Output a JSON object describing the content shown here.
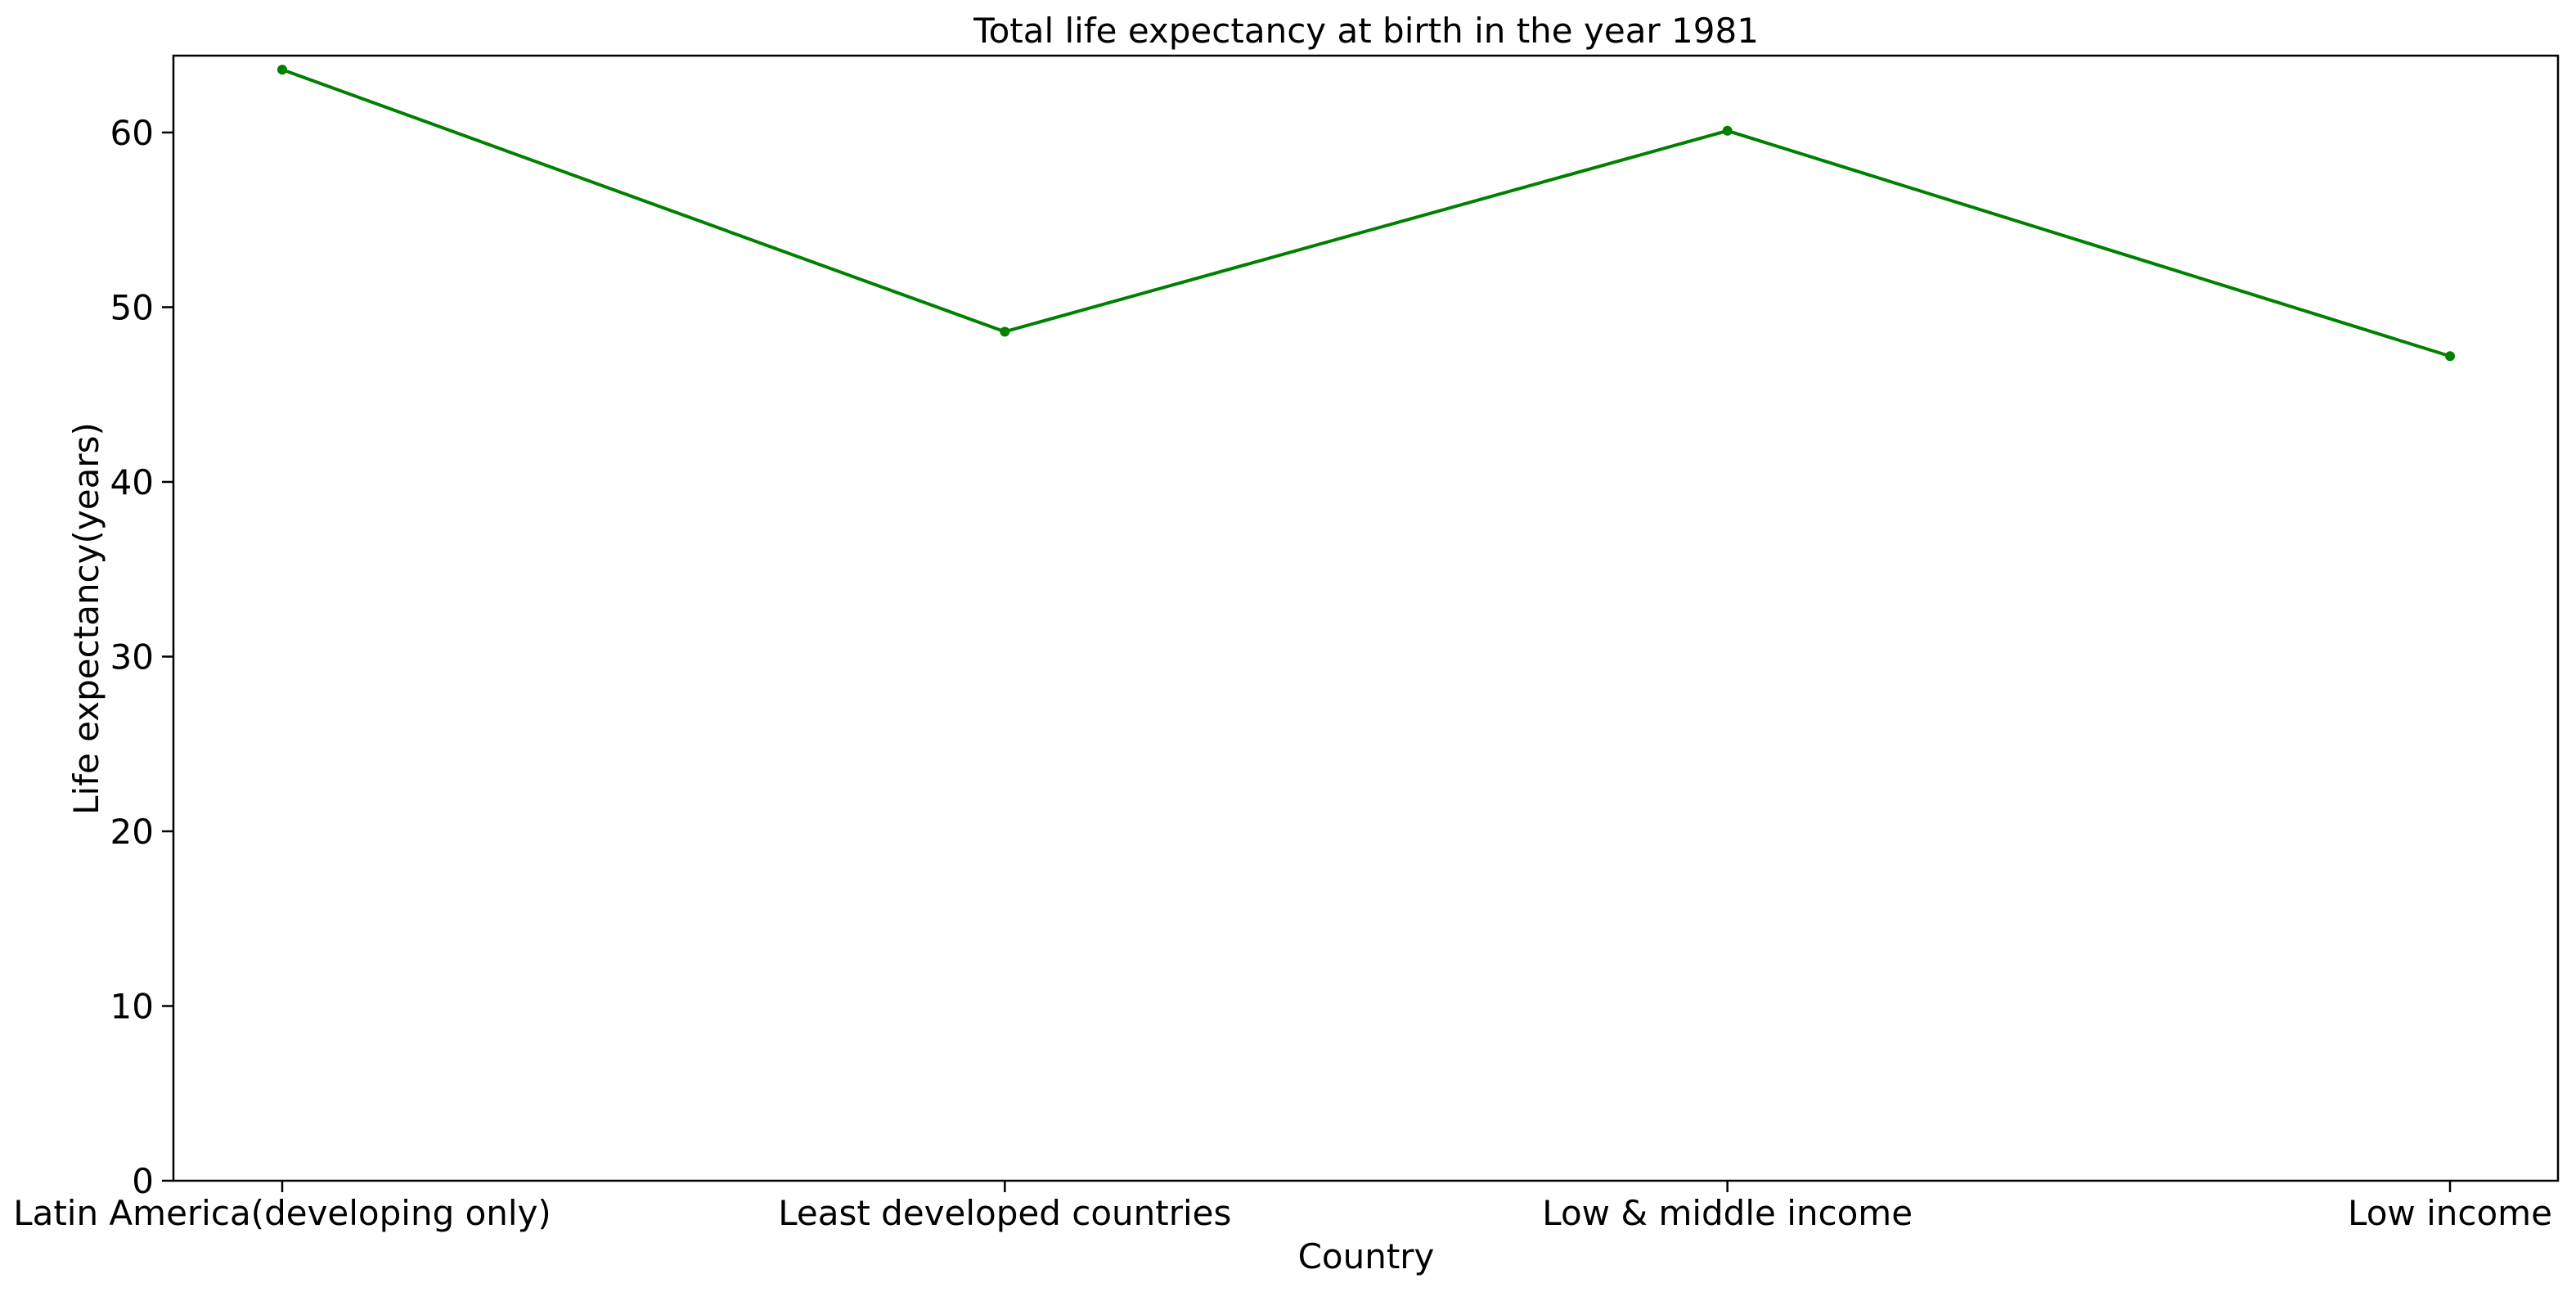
{
  "chart_data": {
    "type": "line",
    "title": "Total life expectancy at birth in the year 1981",
    "xlabel": "Country",
    "ylabel": "Life expectancy(years)",
    "categories": [
      "Latin America(developing only)",
      "Least developed countries",
      "Low & middle income",
      "Low income"
    ],
    "series": [
      {
        "values": [
          63.6,
          48.6,
          60.1,
          47.2
        ],
        "color": "#008000"
      }
    ],
    "ylim": [
      0,
      64.4
    ],
    "yticks": [
      0,
      10,
      20,
      30,
      40,
      50,
      60
    ],
    "grid": false,
    "legend": "none"
  }
}
